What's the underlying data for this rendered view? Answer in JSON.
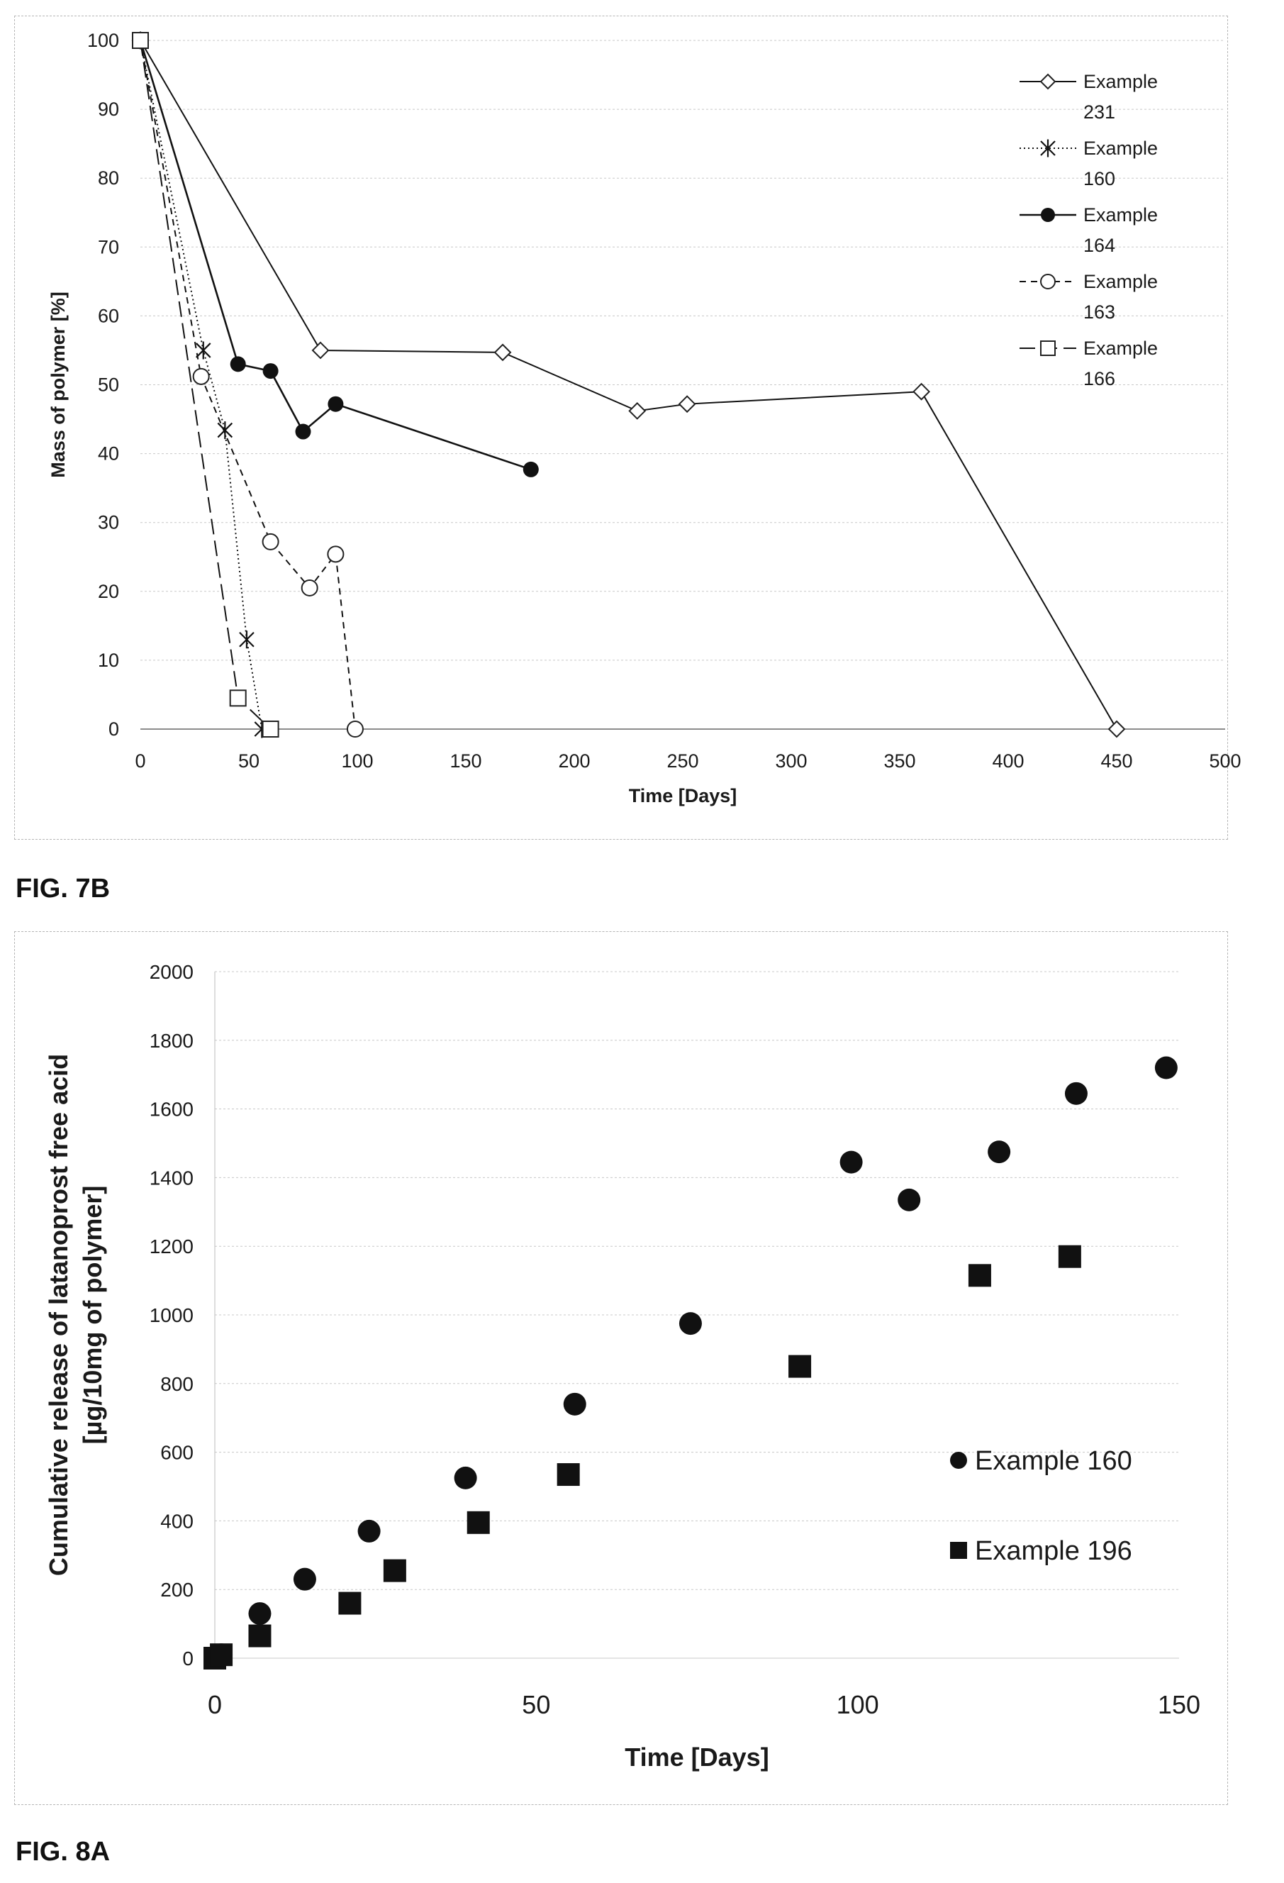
{
  "figure_labels": [
    "FIG. 7B",
    "FIG. 8A"
  ],
  "chart_data": [
    {
      "type": "line",
      "title": "",
      "xlabel": "Time [Days]",
      "ylabel": "Mass of polymer [%]",
      "xlim": [
        0,
        500
      ],
      "ylim": [
        0,
        100
      ],
      "x_ticks": [
        0,
        50,
        100,
        150,
        200,
        250,
        300,
        350,
        400,
        450,
        500
      ],
      "y_ticks": [
        0,
        10,
        20,
        30,
        40,
        50,
        60,
        70,
        80,
        90,
        100
      ],
      "grid": true,
      "legend_position": "top-right",
      "series": [
        {
          "name": "Example 231",
          "legend_lines": [
            "Example",
            "231"
          ],
          "marker": "diamond-open",
          "line": "solid",
          "x": [
            0,
            83,
            167,
            229,
            252,
            360,
            450
          ],
          "y": [
            100,
            55,
            54.7,
            46.2,
            47.2,
            49,
            0
          ]
        },
        {
          "name": "Example 160",
          "legend_lines": [
            "Example",
            "160"
          ],
          "marker": "asterisk",
          "line": "dotted",
          "x": [
            0,
            29,
            39,
            49,
            56
          ],
          "y": [
            100,
            55,
            43.4,
            13,
            0
          ]
        },
        {
          "name": "Example 164",
          "legend_lines": [
            "Example",
            "164"
          ],
          "marker": "circle-filled",
          "line": "solid-thick",
          "x": [
            0,
            45,
            60,
            75,
            90,
            180
          ],
          "y": [
            100,
            53,
            52,
            43.2,
            47.2,
            37.7
          ]
        },
        {
          "name": "Example 163",
          "legend_lines": [
            "Example",
            "163"
          ],
          "marker": "circle-open",
          "line": "dashed",
          "x": [
            0,
            28,
            60,
            78,
            90,
            99
          ],
          "y": [
            100,
            51.2,
            27.2,
            20.5,
            25.4,
            0
          ]
        },
        {
          "name": "Example 166",
          "legend_lines": [
            "Example",
            "166"
          ],
          "marker": "square-open",
          "line": "long-dash",
          "x": [
            0,
            45,
            60
          ],
          "y": [
            100,
            4.5,
            0
          ]
        }
      ]
    },
    {
      "type": "scatter",
      "title": "",
      "xlabel": "Time [Days]",
      "ylabel_lines": [
        "Cumulative release of latanoprost free acid",
        "[µg/10mg of polymer]"
      ],
      "xlim": [
        0,
        150
      ],
      "ylim": [
        0,
        2000
      ],
      "x_ticks": [
        0,
        50,
        100,
        150
      ],
      "y_ticks": [
        0,
        200,
        400,
        600,
        800,
        1000,
        1200,
        1400,
        1600,
        1800,
        2000
      ],
      "grid": true,
      "legend_position": "right",
      "series": [
        {
          "name": "Example 160",
          "marker": "circle-filled",
          "x": [
            0,
            1,
            7,
            14,
            24,
            39,
            56,
            74,
            99,
            108,
            122,
            134,
            148
          ],
          "y": [
            0,
            10,
            130,
            230,
            370,
            525,
            740,
            975,
            1445,
            1335,
            1475,
            1645,
            1720
          ]
        },
        {
          "name": "Example 196",
          "marker": "square-filled",
          "x": [
            0,
            1,
            7,
            21,
            28,
            41,
            55,
            91,
            119,
            133
          ],
          "y": [
            0,
            10,
            65,
            160,
            255,
            395,
            535,
            850,
            1115,
            1170
          ]
        }
      ]
    }
  ]
}
